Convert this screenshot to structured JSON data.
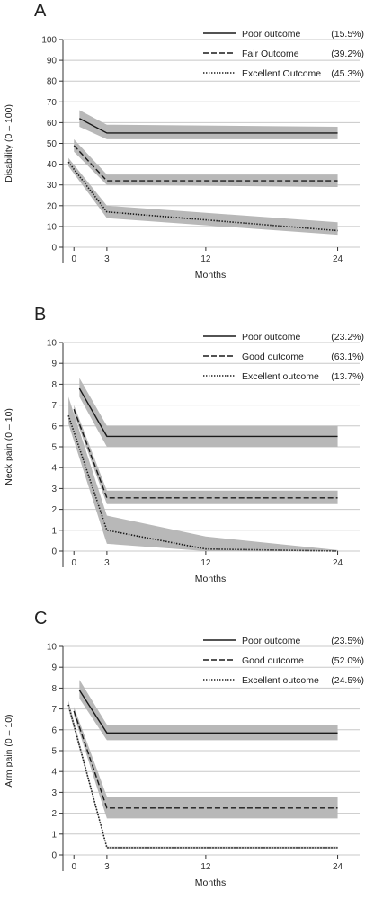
{
  "colors": {
    "band": "#b8b8b8",
    "line": "#1a1a1a",
    "grid": "#c8c8c8",
    "axis": "#333333"
  },
  "chart_data": [
    {
      "type": "line",
      "panel_label": "A",
      "xlabel": "Months",
      "ylabel": "Disability (0 – 100)",
      "xlim": [
        -1,
        26
      ],
      "ylim": [
        0,
        100
      ],
      "xticks": [
        0,
        3,
        12,
        24
      ],
      "yticks": [
        0,
        10,
        20,
        30,
        40,
        50,
        60,
        70,
        80,
        90,
        100
      ],
      "grid": true,
      "legend_position": "top-right",
      "series": [
        {
          "name": "Poor outcome",
          "pct": "(15.5%)",
          "style": "solid",
          "x": [
            0.5,
            3,
            24
          ],
          "y": [
            62,
            55,
            55
          ],
          "lower": [
            58,
            52,
            52
          ],
          "upper": [
            66,
            59,
            58
          ]
        },
        {
          "name": "Fair Outcome",
          "pct": "(39.2%)",
          "style": "dashed",
          "x": [
            0,
            3,
            24
          ],
          "y": [
            49,
            32,
            32
          ],
          "lower": [
            46,
            30,
            29
          ],
          "upper": [
            52,
            35,
            35
          ]
        },
        {
          "name": "Excellent Outcome",
          "pct": "(45.3%)",
          "style": "dotted",
          "x": [
            -0.5,
            3,
            24
          ],
          "y": [
            41,
            17,
            8
          ],
          "lower": [
            39,
            14,
            6
          ],
          "upper": [
            43,
            20,
            12
          ]
        }
      ]
    },
    {
      "type": "line",
      "panel_label": "B",
      "xlabel": "Months",
      "ylabel": "Neck pain (0 – 10)",
      "xlim": [
        -1,
        26
      ],
      "ylim": [
        0,
        10
      ],
      "xticks": [
        0,
        3,
        12,
        24
      ],
      "yticks": [
        0,
        1,
        2,
        3,
        4,
        5,
        6,
        7,
        8,
        9,
        10
      ],
      "grid": true,
      "legend_position": "top-right",
      "series": [
        {
          "name": "Poor outcome",
          "pct": "(23.2%)",
          "style": "solid",
          "x": [
            0.5,
            3,
            24
          ],
          "y": [
            7.8,
            5.5,
            5.5
          ],
          "lower": [
            7.4,
            5.0,
            5.0
          ],
          "upper": [
            8.3,
            6.0,
            6.0
          ]
        },
        {
          "name": "Good outcome",
          "pct": "(63.1%)",
          "style": "dashed",
          "x": [
            0,
            3,
            24
          ],
          "y": [
            6.8,
            2.55,
            2.55
          ],
          "lower": [
            6.6,
            2.25,
            2.25
          ],
          "upper": [
            7.0,
            2.9,
            2.9
          ]
        },
        {
          "name": "Excellent outcome",
          "pct": "(13.7%)",
          "style": "dotted",
          "x": [
            -0.5,
            3,
            12,
            24
          ],
          "y": [
            6.5,
            1.0,
            0.1,
            0.0
          ],
          "lower": [
            6.1,
            0.35,
            0.0,
            0.0
          ],
          "upper": [
            7.4,
            1.7,
            0.7,
            0.05
          ]
        }
      ]
    },
    {
      "type": "line",
      "panel_label": "C",
      "xlabel": "Months",
      "ylabel": "Arm pain (0 – 10)",
      "xlim": [
        -1,
        26
      ],
      "ylim": [
        0,
        10
      ],
      "xticks": [
        0,
        3,
        12,
        24
      ],
      "yticks": [
        0,
        1,
        2,
        3,
        4,
        5,
        6,
        7,
        8,
        9,
        10
      ],
      "grid": true,
      "legend_position": "top-right",
      "series": [
        {
          "name": "Poor outcome",
          "pct": "(23.5%)",
          "style": "solid",
          "x": [
            0.5,
            3,
            24
          ],
          "y": [
            7.9,
            5.85,
            5.85
          ],
          "lower": [
            7.5,
            5.5,
            5.5
          ],
          "upper": [
            8.4,
            6.25,
            6.25
          ]
        },
        {
          "name": "Good outcome",
          "pct": "(52.0%)",
          "style": "dashed",
          "x": [
            0,
            3,
            24
          ],
          "y": [
            6.9,
            2.25,
            2.25
          ],
          "lower": [
            6.7,
            1.75,
            1.75
          ],
          "upper": [
            7.1,
            2.8,
            2.8
          ]
        },
        {
          "name": "Excellent outcome",
          "pct": "(24.5%)",
          "style": "dotted",
          "x": [
            -0.5,
            3,
            24
          ],
          "y": [
            7.2,
            0.35,
            0.35
          ],
          "lower": [
            7.0,
            0.3,
            0.3
          ],
          "upper": [
            7.4,
            0.4,
            0.4
          ]
        }
      ]
    }
  ]
}
